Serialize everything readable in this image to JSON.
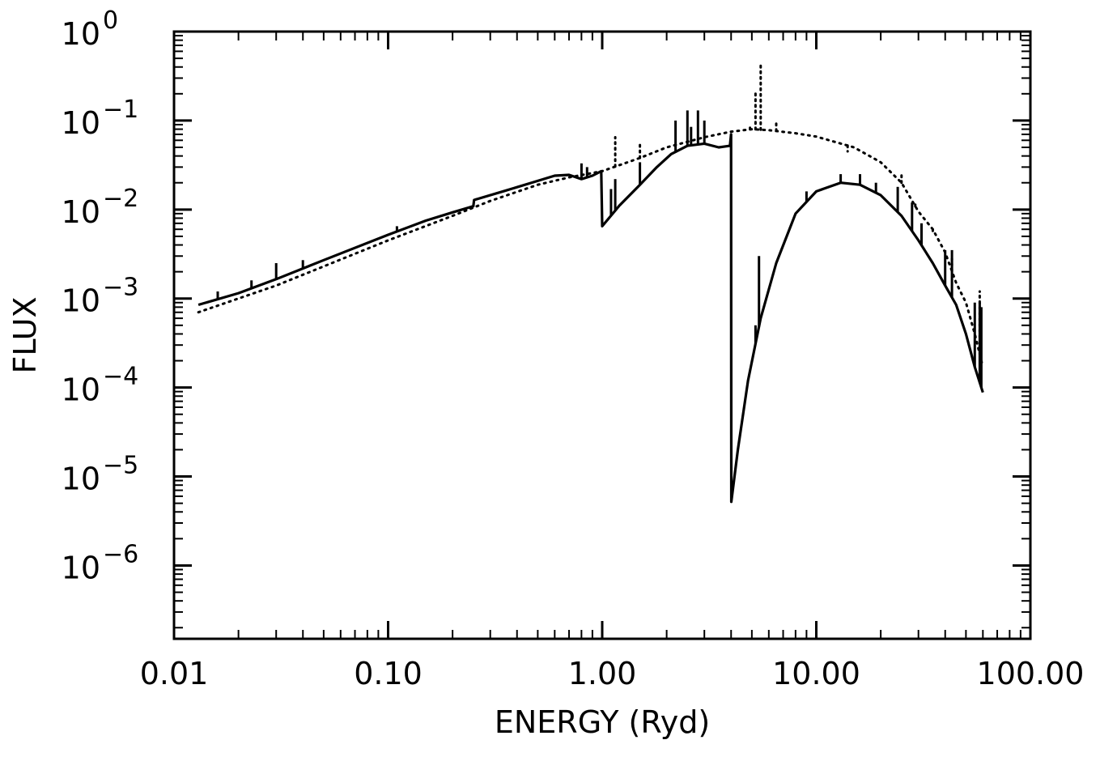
{
  "chart_data": {
    "type": "line",
    "title": "",
    "xlabel": "ENERGY (Ryd)",
    "ylabel": "FLUX",
    "xscale": "log",
    "yscale": "log",
    "xlim": [
      0.01,
      100
    ],
    "ylim": [
      1.5e-07,
      1
    ],
    "grid": false,
    "legend": "none",
    "x_ticks": [
      {
        "value": 0.01,
        "label": "0.01"
      },
      {
        "value": 0.1,
        "label": "0.10"
      },
      {
        "value": 1,
        "label": "1.00"
      },
      {
        "value": 10,
        "label": "10.00"
      },
      {
        "value": 100,
        "label": "100.00"
      }
    ],
    "y_ticks": [
      {
        "value": 1,
        "base": "10",
        "exp": "0"
      },
      {
        "value": 0.1,
        "base": "10",
        "exp": "−1"
      },
      {
        "value": 0.01,
        "base": "10",
        "exp": "−2"
      },
      {
        "value": 0.001,
        "base": "10",
        "exp": "−3"
      },
      {
        "value": 0.0001,
        "base": "10",
        "exp": "−4"
      },
      {
        "value": 1e-05,
        "base": "10",
        "exp": "−5"
      },
      {
        "value": 1e-06,
        "base": "10",
        "exp": "−6"
      }
    ],
    "series": [
      {
        "style": "solid",
        "color": "#000000",
        "points": [
          [
            0.013,
            0.00085
          ],
          [
            0.02,
            0.00115
          ],
          [
            0.03,
            0.00165
          ],
          [
            0.05,
            0.0027
          ],
          [
            0.1,
            0.0052
          ],
          [
            0.15,
            0.0075
          ],
          [
            0.2,
            0.0093
          ],
          [
            0.25,
            0.0109
          ],
          [
            0.252,
            0.0128
          ],
          [
            0.35,
            0.0162
          ],
          [
            0.5,
            0.021
          ],
          [
            0.6,
            0.024
          ],
          [
            0.7,
            0.0245
          ],
          [
            0.8,
            0.022
          ],
          [
            0.9,
            0.024
          ],
          [
            0.99,
            0.027
          ],
          [
            1.0,
            0.0065
          ],
          [
            1.2,
            0.011
          ],
          [
            1.5,
            0.019
          ],
          [
            1.8,
            0.03
          ],
          [
            2.1,
            0.042
          ],
          [
            2.5,
            0.052
          ],
          [
            3.0,
            0.055
          ],
          [
            3.5,
            0.05
          ],
          [
            3.95,
            0.052
          ],
          [
            4.0,
            0.07
          ],
          [
            4.01,
            5.2e-06
          ],
          [
            4.3,
            2e-05
          ],
          [
            4.8,
            0.00012
          ],
          [
            5.5,
            0.0006
          ],
          [
            6.5,
            0.0025
          ],
          [
            8.0,
            0.009
          ],
          [
            10.0,
            0.016
          ],
          [
            13.0,
            0.02
          ],
          [
            16.0,
            0.019
          ],
          [
            20.0,
            0.0145
          ],
          [
            25.0,
            0.0085
          ],
          [
            30.0,
            0.0045
          ],
          [
            35.0,
            0.0025
          ],
          [
            40.0,
            0.0014
          ],
          [
            45.0,
            0.00085
          ],
          [
            50.0,
            0.0004
          ],
          [
            55.0,
            0.00017
          ],
          [
            60.0,
            8.8e-05
          ]
        ],
        "spikes": [
          [
            0.016,
            0.0012
          ],
          [
            0.023,
            0.0016
          ],
          [
            0.03,
            0.0025
          ],
          [
            0.04,
            0.0027
          ],
          [
            0.11,
            0.0065
          ],
          [
            0.26,
            0.0135
          ],
          [
            0.8,
            0.033
          ],
          [
            0.85,
            0.03
          ],
          [
            1.1,
            0.017
          ],
          [
            1.15,
            0.022
          ],
          [
            1.5,
            0.034
          ],
          [
            2.2,
            0.1
          ],
          [
            2.5,
            0.13
          ],
          [
            2.6,
            0.085
          ],
          [
            2.8,
            0.13
          ],
          [
            3.0,
            0.1
          ],
          [
            5.4,
            0.003
          ],
          [
            5.2,
            0.0005
          ],
          [
            9.0,
            0.016
          ],
          [
            13.0,
            0.025
          ],
          [
            16.0,
            0.025
          ],
          [
            19.0,
            0.02
          ],
          [
            24.0,
            0.018
          ],
          [
            28.0,
            0.012
          ],
          [
            31.0,
            0.007
          ],
          [
            40.0,
            0.0035
          ],
          [
            43.0,
            0.0035
          ],
          [
            55.0,
            0.0009
          ],
          [
            58.0,
            0.0009
          ],
          [
            59.0,
            0.0008
          ]
        ]
      },
      {
        "style": "dotted",
        "color": "#000000",
        "points": [
          [
            0.013,
            0.0007
          ],
          [
            0.02,
            0.001
          ],
          [
            0.03,
            0.0014
          ],
          [
            0.05,
            0.0023
          ],
          [
            0.1,
            0.0045
          ],
          [
            0.2,
            0.0085
          ],
          [
            0.3,
            0.0125
          ],
          [
            0.5,
            0.019
          ],
          [
            0.7,
            0.023
          ],
          [
            1.0,
            0.027
          ],
          [
            1.5,
            0.038
          ],
          [
            2.0,
            0.05
          ],
          [
            3.0,
            0.065
          ],
          [
            4.0,
            0.075
          ],
          [
            5.0,
            0.08
          ],
          [
            6.0,
            0.078
          ],
          [
            8.0,
            0.072
          ],
          [
            10.0,
            0.066
          ],
          [
            15.0,
            0.05
          ],
          [
            20.0,
            0.034
          ],
          [
            25.0,
            0.02
          ],
          [
            30.0,
            0.0095
          ],
          [
            35.0,
            0.006
          ],
          [
            40.0,
            0.0033
          ],
          [
            45.0,
            0.0015
          ],
          [
            50.0,
            0.0009
          ],
          [
            55.0,
            0.0004
          ],
          [
            60.0,
            0.00017
          ]
        ],
        "spikes": [
          [
            1.15,
            0.065
          ],
          [
            1.5,
            0.055
          ],
          [
            4.9,
            0.09
          ],
          [
            5.2,
            0.2
          ],
          [
            5.5,
            0.45
          ],
          [
            6.5,
            0.1
          ],
          [
            14.0,
            0.045
          ],
          [
            25.0,
            0.025
          ],
          [
            29.0,
            0.012
          ],
          [
            35.0,
            0.0055
          ],
          [
            43.0,
            0.0028
          ],
          [
            58.0,
            0.0012
          ]
        ]
      }
    ]
  }
}
